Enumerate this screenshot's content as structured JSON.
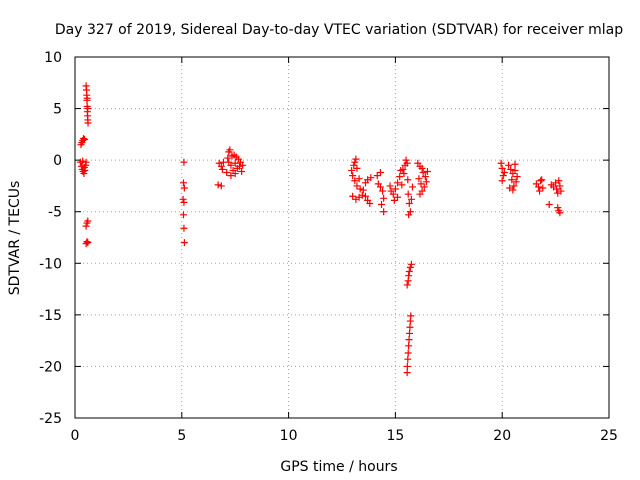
{
  "chart_data": {
    "type": "scatter",
    "title": "Day 327 of 2019, Sidereal Day-to-day VTEC variation (SDTVAR) for receiver mlap",
    "xlabel": "GPS time / hours",
    "ylabel": "SDTVAR / TECUs",
    "xlim": [
      0,
      25
    ],
    "ylim": [
      -25,
      10
    ],
    "xticks": [
      0,
      5,
      10,
      15,
      20,
      25
    ],
    "yticks": [
      -25,
      -20,
      -15,
      -10,
      -5,
      0,
      5,
      10
    ],
    "grid": true,
    "marker": "+",
    "color": "#ff0000",
    "series": [
      {
        "name": "SDTVAR",
        "points": [
          [
            0.28,
            1.5
          ],
          [
            0.32,
            1.7
          ],
          [
            0.36,
            1.9
          ],
          [
            0.4,
            2.1
          ],
          [
            0.44,
            2.0
          ],
          [
            0.25,
            -0.2
          ],
          [
            0.3,
            -0.6
          ],
          [
            0.34,
            -0.9
          ],
          [
            0.38,
            -1.1
          ],
          [
            0.42,
            -1.3
          ],
          [
            0.46,
            -1.0
          ],
          [
            0.5,
            -0.5
          ],
          [
            0.52,
            -0.2
          ],
          [
            0.36,
            -0.1
          ],
          [
            0.44,
            -0.7
          ],
          [
            0.52,
            7.2
          ],
          [
            0.54,
            6.8
          ],
          [
            0.55,
            6.3
          ],
          [
            0.56,
            5.8
          ],
          [
            0.57,
            5.2
          ],
          [
            0.58,
            4.7
          ],
          [
            0.59,
            4.3
          ],
          [
            0.6,
            3.9
          ],
          [
            0.61,
            3.6
          ],
          [
            0.57,
            6.0
          ],
          [
            0.6,
            5.0
          ],
          [
            0.52,
            -6.4
          ],
          [
            0.56,
            -6.1
          ],
          [
            0.6,
            -5.9
          ],
          [
            0.52,
            -8.1
          ],
          [
            0.56,
            -7.9
          ],
          [
            0.6,
            -8.0
          ],
          [
            5.1,
            -0.2
          ],
          [
            5.08,
            -2.2
          ],
          [
            5.12,
            -2.7
          ],
          [
            5.06,
            -3.8
          ],
          [
            5.1,
            -4.1
          ],
          [
            5.08,
            -5.3
          ],
          [
            5.1,
            -6.6
          ],
          [
            5.12,
            -8.0
          ],
          [
            6.7,
            -2.4
          ],
          [
            6.85,
            -2.5
          ],
          [
            6.75,
            -0.3
          ],
          [
            6.85,
            -0.6
          ],
          [
            6.95,
            -0.2
          ],
          [
            6.9,
            -0.9
          ],
          [
            7.1,
            -1.2
          ],
          [
            7.15,
            0.2
          ],
          [
            7.2,
            0.8
          ],
          [
            7.25,
            1.0
          ],
          [
            7.3,
            -0.5
          ],
          [
            7.35,
            0.4
          ],
          [
            7.4,
            -1.0
          ],
          [
            7.45,
            0.5
          ],
          [
            7.5,
            -0.3
          ],
          [
            7.55,
            0.3
          ],
          [
            7.6,
            -0.8
          ],
          [
            7.65,
            0.1
          ],
          [
            7.7,
            -0.6
          ],
          [
            7.75,
            -0.2
          ],
          [
            7.8,
            -1.1
          ],
          [
            7.85,
            -0.5
          ],
          [
            7.3,
            -1.5
          ],
          [
            7.5,
            -1.3
          ],
          [
            7.2,
            -0.2
          ],
          [
            12.95,
            -1.0
          ],
          [
            13.0,
            -1.5
          ],
          [
            13.05,
            -0.5
          ],
          [
            13.1,
            -0.2
          ],
          [
            13.15,
            0.1
          ],
          [
            13.2,
            -0.8
          ],
          [
            13.1,
            -2.0
          ],
          [
            13.2,
            -2.5
          ],
          [
            13.3,
            -1.8
          ],
          [
            13.35,
            -2.8
          ],
          [
            13.0,
            -3.5
          ],
          [
            13.15,
            -3.8
          ],
          [
            13.3,
            -3.6
          ],
          [
            13.45,
            -3.4
          ],
          [
            13.6,
            -3.5
          ],
          [
            13.7,
            -3.9
          ],
          [
            13.8,
            -4.2
          ],
          [
            13.5,
            -2.9
          ],
          [
            13.7,
            -1.9
          ],
          [
            13.6,
            -2.2
          ],
          [
            13.85,
            -1.7
          ],
          [
            14.15,
            -1.5
          ],
          [
            14.2,
            -2.3
          ],
          [
            14.3,
            -2.6
          ],
          [
            14.4,
            -3.0
          ],
          [
            14.45,
            -3.7
          ],
          [
            14.35,
            -4.3
          ],
          [
            14.45,
            -5.0
          ],
          [
            14.3,
            -1.2
          ],
          [
            14.75,
            -2.5
          ],
          [
            14.8,
            -3.0
          ],
          [
            14.9,
            -3.3
          ],
          [
            15.0,
            -2.8
          ],
          [
            15.1,
            -2.2
          ],
          [
            15.2,
            -1.6
          ],
          [
            15.25,
            -1.0
          ],
          [
            15.3,
            -2.4
          ],
          [
            15.35,
            -0.9
          ],
          [
            14.95,
            -3.9
          ],
          [
            15.1,
            -3.6
          ],
          [
            15.4,
            -1.3
          ],
          [
            15.45,
            -0.5
          ],
          [
            15.5,
            0.0
          ],
          [
            15.55,
            -0.3
          ],
          [
            15.6,
            -3.3
          ],
          [
            15.65,
            -4.2
          ],
          [
            15.7,
            -5.0
          ],
          [
            15.62,
            -5.3
          ],
          [
            15.75,
            -3.8
          ],
          [
            15.8,
            -2.6
          ],
          [
            15.58,
            -1.9
          ],
          [
            15.55,
            -12.1
          ],
          [
            15.6,
            -11.7
          ],
          [
            15.62,
            -11.2
          ],
          [
            15.65,
            -10.8
          ],
          [
            15.7,
            -10.4
          ],
          [
            15.75,
            -10.1
          ],
          [
            15.55,
            -20.6
          ],
          [
            15.56,
            -20.0
          ],
          [
            15.58,
            -19.3
          ],
          [
            15.6,
            -18.7
          ],
          [
            15.62,
            -18.0
          ],
          [
            15.64,
            -17.4
          ],
          [
            15.66,
            -16.8
          ],
          [
            15.68,
            -16.2
          ],
          [
            15.7,
            -15.6
          ],
          [
            15.72,
            -15.1
          ],
          [
            16.05,
            -0.3
          ],
          [
            16.15,
            -0.6
          ],
          [
            16.1,
            -1.8
          ],
          [
            16.2,
            -2.3
          ],
          [
            16.25,
            -3.0
          ],
          [
            16.15,
            -3.3
          ],
          [
            16.3,
            -1.2
          ],
          [
            16.35,
            -2.6
          ],
          [
            16.4,
            -1.6
          ],
          [
            16.45,
            -2.1
          ],
          [
            16.5,
            -1.1
          ],
          [
            16.25,
            -0.8
          ],
          [
            19.95,
            -0.3
          ],
          [
            20.0,
            -0.8
          ],
          [
            20.05,
            -1.5
          ],
          [
            20.0,
            -2.0
          ],
          [
            20.1,
            -1.2
          ],
          [
            20.3,
            -0.5
          ],
          [
            20.4,
            -0.9
          ],
          [
            20.5,
            -1.3
          ],
          [
            20.45,
            -1.9
          ],
          [
            20.55,
            -2.5
          ],
          [
            20.6,
            -1.0
          ],
          [
            20.65,
            -2.1
          ],
          [
            20.7,
            -1.6
          ],
          [
            20.5,
            -2.9
          ],
          [
            20.35,
            -2.7
          ],
          [
            20.6,
            -0.4
          ],
          [
            21.6,
            -2.3
          ],
          [
            21.7,
            -2.6
          ],
          [
            21.8,
            -2.0
          ],
          [
            21.75,
            -3.0
          ],
          [
            21.9,
            -2.7
          ],
          [
            21.85,
            -1.9
          ],
          [
            22.2,
            -4.3
          ],
          [
            22.3,
            -2.4
          ],
          [
            22.4,
            -2.6
          ],
          [
            22.5,
            -2.2
          ],
          [
            22.55,
            -2.8
          ],
          [
            22.6,
            -3.2
          ],
          [
            22.65,
            -2.0
          ],
          [
            22.7,
            -2.5
          ],
          [
            22.75,
            -3.0
          ],
          [
            22.6,
            -4.6
          ],
          [
            22.65,
            -4.9
          ],
          [
            22.7,
            -5.1
          ]
        ]
      }
    ]
  }
}
